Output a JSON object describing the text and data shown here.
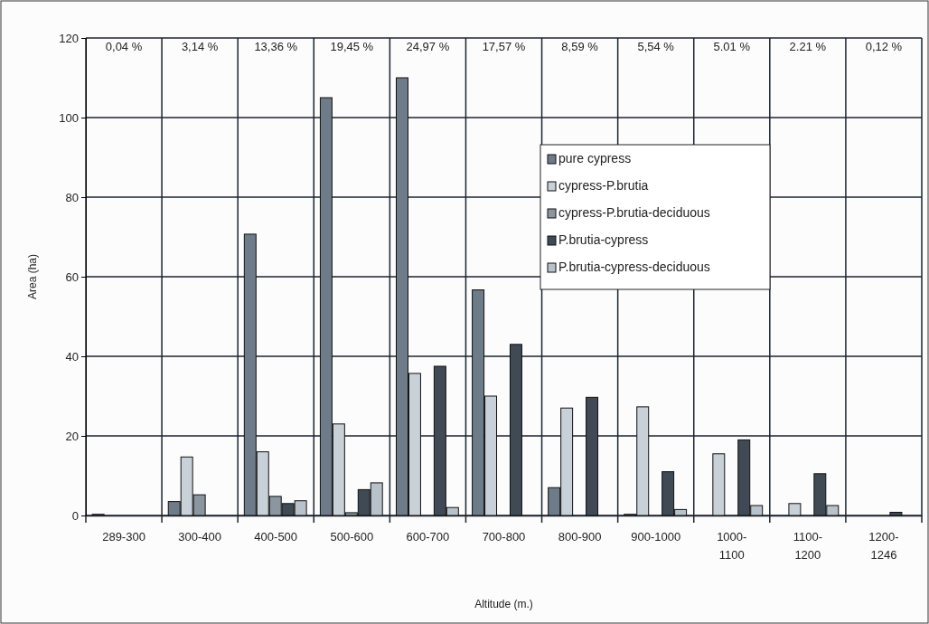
{
  "chart_data": {
    "type": "bar",
    "xlabel": "Altitude (m.)",
    "ylabel": "Area (ha)",
    "categories": [
      "289-300",
      "300-400",
      "400-500",
      "500-600",
      "600-700",
      "700-800",
      "800-900",
      "900-1000",
      "1000-1100",
      "1100-1200",
      "1200-1246"
    ],
    "series": [
      {
        "name": "pure cypress",
        "color": "#6e7b88",
        "values": [
          0.3,
          3.5,
          70.7,
          105,
          110,
          56.7,
          7,
          0.3,
          0,
          0,
          0
        ]
      },
      {
        "name": "cypress-P.brutia",
        "color": "#c8d0d8",
        "values": [
          0,
          14.7,
          16,
          23,
          35.7,
          30,
          27,
          27.3,
          15.5,
          3,
          0
        ]
      },
      {
        "name": "cypress-P.brutia-deciduous",
        "color": "#8a96a0",
        "values": [
          0,
          5.2,
          4.8,
          0.7,
          0,
          0,
          0,
          0,
          0,
          0,
          0
        ]
      },
      {
        "name": "P.brutia-cypress",
        "color": "#3f4a55",
        "values": [
          0,
          0,
          3,
          6.5,
          37.5,
          43,
          29.7,
          11,
          19,
          10.5,
          0.8
        ]
      },
      {
        "name": "P.brutia-cypress-deciduous",
        "color": "#b8c2cb",
        "values": [
          0,
          0,
          3.7,
          8.2,
          2,
          0,
          0,
          1.5,
          2.5,
          2.5,
          0
        ]
      }
    ],
    "ylim": [
      0,
      120
    ],
    "yticks": [
      0,
      20,
      40,
      60,
      80,
      100,
      120
    ],
    "grid": true,
    "legend": "right",
    "annotations": [
      "0,04 %",
      "3,14 %",
      "13,36 %",
      "19,45 %",
      "24,97 %",
      "17,57 %",
      "8,59 %",
      "5,54 %",
      "5.01 %",
      "2.21 %",
      "0,12 %"
    ]
  }
}
